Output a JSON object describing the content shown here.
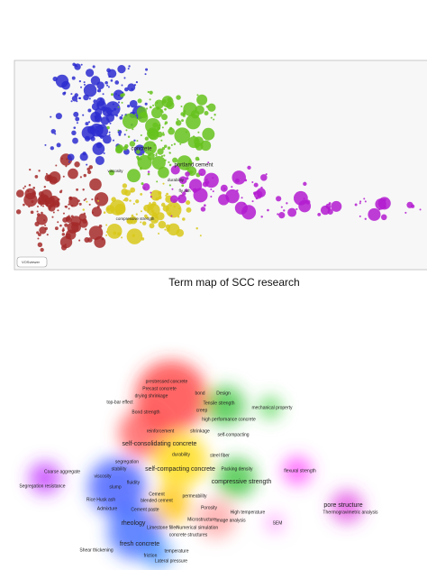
{
  "term_map": {
    "labels": [
      "concrete",
      "portland cement",
      "fly ash",
      "viscosity",
      "compressive strength",
      "durability"
    ],
    "logo": "VOSviewer",
    "caption": "Term map of SCC research"
  },
  "density_map": {
    "labels": [
      "prestressed concrete",
      "Precast concrete",
      "drying shrinkage",
      "bond",
      "Design",
      "top-bar effect",
      "Tensile strength",
      "mechanical property",
      "Bond strength",
      "creep",
      "high performance concrete",
      "reinforcement",
      "shrinkage",
      "self-compacting",
      "self-consolidating concrete",
      "durability",
      "steel fiber",
      "segregation",
      "stability",
      "self-compacting concrete",
      "Packing density",
      "flexural strength",
      "Coarse aggregate",
      "viscosity",
      "fluidity",
      "compressive strength",
      "Segregation resistance",
      "slump",
      "Cement",
      "permeability",
      "blended cement",
      "Rice Husk ash",
      "Admixture",
      "Cement paste",
      "Porosity",
      "pore structure",
      "High temperature",
      "Thermogravimetric analysis",
      "Microstructure",
      "rheology",
      "SEM",
      "Image analysis",
      "Limestone filler",
      "Numerical simulation",
      "concrete structures",
      "fresh concrete",
      "Shear thickening",
      "temperature",
      "friction",
      "Lateral pressure"
    ]
  }
}
